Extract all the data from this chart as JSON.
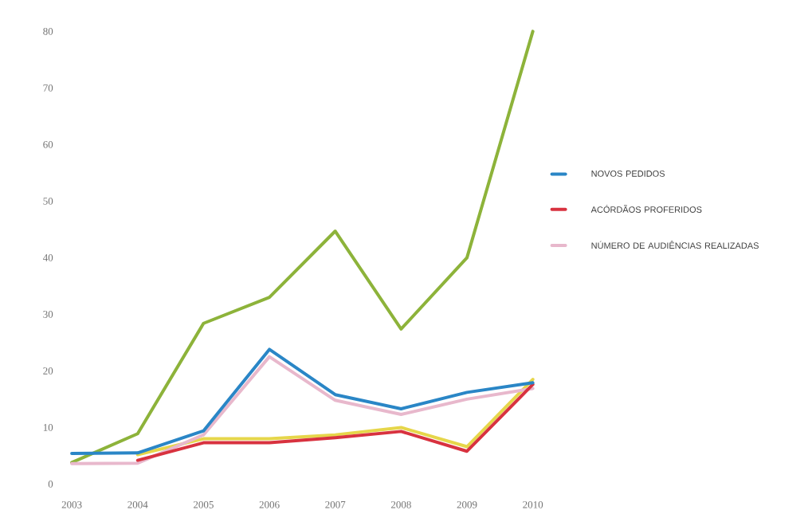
{
  "chart_data": {
    "type": "line",
    "categories": [
      "2003",
      "2004",
      "2005",
      "2006",
      "2007",
      "2008",
      "2009",
      "2010"
    ],
    "series": [
      {
        "color": "#8db33a",
        "values": [
          3.8,
          8.9,
          28.4,
          33,
          44.7,
          27.4,
          40,
          80
        ]
      },
      {
        "color": "#e6d64a",
        "values": [
          null,
          5.2,
          8,
          8,
          8.7,
          10,
          6.6,
          18.5
        ]
      },
      {
        "name": "NÚMERO DE AUDIÊNCIAS REALIZADAS",
        "color": "#e8b8cc",
        "values": [
          3.6,
          3.7,
          8.7,
          22.5,
          14.8,
          12.3,
          15,
          16.9
        ]
      },
      {
        "name": "ACÓRDÃOS PROFERIDOS",
        "color": "#d8323f",
        "values": [
          null,
          4.2,
          7.3,
          7.3,
          8.2,
          9.3,
          5.8,
          17.6
        ]
      },
      {
        "name": "NOVOS PEDIDOS",
        "color": "#2a86c6",
        "values": [
          5.4,
          5.5,
          9.4,
          23.8,
          15.8,
          13.3,
          16.2,
          17.9
        ]
      }
    ],
    "ylim": [
      0,
      80
    ],
    "yticks": [
      0,
      10,
      20,
      30,
      40,
      50,
      60,
      70,
      80
    ],
    "grid": false,
    "legend": "right"
  }
}
